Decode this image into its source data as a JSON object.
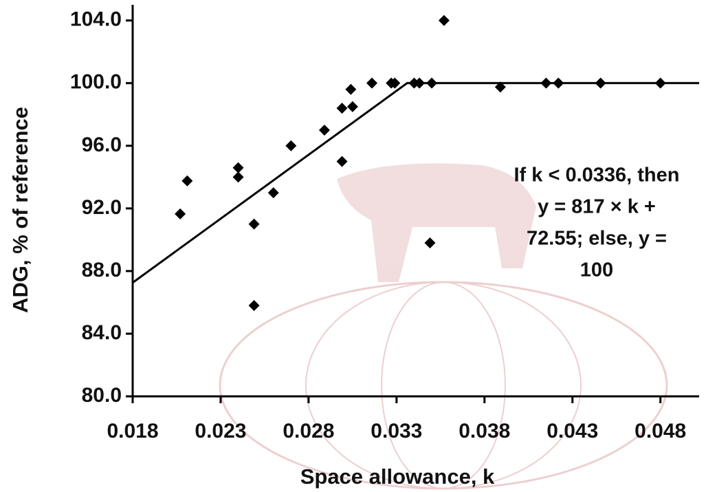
{
  "chart_data": {
    "type": "scatter",
    "x_label": "Space allowance, k",
    "y_label": "ADG, % of reference",
    "xlim": [
      0.018,
      0.0502
    ],
    "ylim": [
      80,
      105
    ],
    "xticks": [
      0.018,
      0.023,
      0.028,
      0.033,
      0.038,
      0.043,
      0.048
    ],
    "yticks": [
      {
        "value": 80,
        "label": "80.0"
      },
      {
        "value": 84,
        "label": "84.0"
      },
      {
        "value": 88,
        "label": "88.0"
      },
      {
        "value": 92,
        "label": "92.0"
      },
      {
        "value": 96,
        "label": "96.0"
      },
      {
        "value": 100,
        "label": "100.0"
      },
      {
        "value": 104,
        "label": "104.0"
      }
    ],
    "grid": false,
    "series": [
      {
        "color": "#000000",
        "marker": "diamond",
        "x": [
          0.0207,
          0.0211,
          0.024,
          0.024,
          0.0249,
          0.0249,
          0.026,
          0.027,
          0.0289,
          0.0299,
          0.0299,
          0.0305,
          0.0304,
          0.0316,
          0.0327,
          0.0329,
          0.034,
          0.0343,
          0.035,
          0.0349,
          0.0357,
          0.0389,
          0.0415,
          0.0422,
          0.0446,
          0.048
        ],
        "values": [
          91.65,
          93.76,
          94.6,
          94.0,
          91.0,
          85.8,
          93.0,
          96.0,
          97.0,
          98.4,
          95.0,
          98.5,
          99.6,
          100,
          100,
          100,
          100,
          100,
          100,
          89.8,
          104.0,
          99.75,
          100,
          100,
          100,
          100
        ]
      },
      {
        "color": "#000000",
        "marker": "line",
        "x": [
          0.018,
          0.0336,
          0.0502
        ],
        "values": [
          87.26,
          100,
          100
        ]
      }
    ],
    "annotation": [
      "If k < 0.0336, then",
      "y = 817 × k +",
      "72.55;  else, y =",
      "100"
    ]
  }
}
